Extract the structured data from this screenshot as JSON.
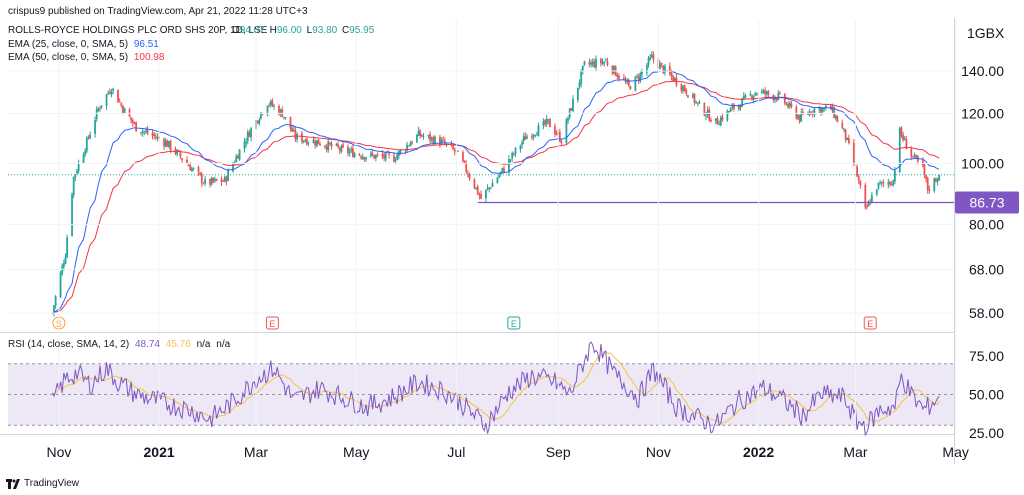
{
  "publisher_line": "crispus9 published on TradingView.com, Apr 21, 2022 11:28 UTC+3",
  "footer_text": "TradingView",
  "colors": {
    "up": "#26a69a",
    "down": "#ef5350",
    "ema25": "#2962ff",
    "ema50": "#f23645",
    "rsi": "#7e57c2",
    "rsi_ma": "#f5c542",
    "support": "#7e57c2",
    "rsi_band": "#ede7f6"
  },
  "chart_data": [
    {
      "type": "candlestick",
      "title": "ROLLS-ROYCE HOLDINGS PLC ORD SHS 20P, 1D, LSE",
      "ohlc_readout": {
        "o_label": "O",
        "o": "94.07",
        "h_label": "H",
        "h": "96.00",
        "l_label": "L",
        "l": "93.80",
        "c_label": "C",
        "c": "95.95"
      },
      "currency_label": "GBX",
      "y_ticks": [
        "140.00",
        "120.00",
        "100.00",
        "80.00",
        "68.00",
        "58.00"
      ],
      "y_scale": "log",
      "x_ticks": [
        {
          "label": "Nov",
          "bold": false
        },
        {
          "label": "2021",
          "bold": true
        },
        {
          "label": "Mar",
          "bold": false
        },
        {
          "label": "May",
          "bold": false
        },
        {
          "label": "Jul",
          "bold": false
        },
        {
          "label": "Sep",
          "bold": false
        },
        {
          "label": "Nov",
          "bold": false
        },
        {
          "label": "2022",
          "bold": true
        },
        {
          "label": "Mar",
          "bold": false
        },
        {
          "label": "May",
          "bold": false
        }
      ],
      "indicators": [
        {
          "label": "EMA (25, close, 0, SMA, 5)",
          "value": "96.51",
          "color": "#2962ff"
        },
        {
          "label": "EMA (50, close, 0, SMA, 5)",
          "value": "100.98",
          "color": "#f23645"
        }
      ],
      "horizontal_line": {
        "value": 86.73,
        "label": "86.73"
      },
      "events": [
        {
          "letter": "S",
          "kind": "split"
        },
        {
          "letter": "E",
          "kind": "earnings"
        },
        {
          "letter": "E",
          "kind": "earnings"
        },
        {
          "letter": "E",
          "kind": "earnings"
        }
      ],
      "price_path": [
        [
          "2020-10-28",
          58
        ],
        [
          "2020-11-05",
          72
        ],
        [
          "2020-11-10",
          95
        ],
        [
          "2020-11-18",
          108
        ],
        [
          "2020-11-25",
          122
        ],
        [
          "2020-12-03",
          132
        ],
        [
          "2020-12-10",
          122
        ],
        [
          "2020-12-18",
          114
        ],
        [
          "2021-01-05",
          108
        ],
        [
          "2021-01-18",
          100
        ],
        [
          "2021-01-29",
          93
        ],
        [
          "2021-02-10",
          94
        ],
        [
          "2021-02-25",
          112
        ],
        [
          "2021-03-08",
          125
        ],
        [
          "2021-03-17",
          120
        ],
        [
          "2021-03-25",
          110
        ],
        [
          "2021-04-08",
          108
        ],
        [
          "2021-04-22",
          105
        ],
        [
          "2021-05-06",
          103
        ],
        [
          "2021-05-24",
          102
        ],
        [
          "2021-06-08",
          111
        ],
        [
          "2021-06-22",
          108
        ],
        [
          "2021-07-01",
          104
        ],
        [
          "2021-07-16",
          88
        ],
        [
          "2021-07-30",
          98
        ],
        [
          "2021-08-12",
          110
        ],
        [
          "2021-08-26",
          116
        ],
        [
          "2021-09-03",
          109
        ],
        [
          "2021-09-10",
          125
        ],
        [
          "2021-09-17",
          143
        ],
        [
          "2021-09-30",
          145
        ],
        [
          "2021-10-14",
          132
        ],
        [
          "2021-10-21",
          138
        ],
        [
          "2021-10-28",
          147
        ],
        [
          "2021-11-05",
          140
        ],
        [
          "2021-11-16",
          132
        ],
        [
          "2021-11-26",
          123
        ],
        [
          "2021-12-06",
          116
        ],
        [
          "2021-12-16",
          122
        ],
        [
          "2021-12-31",
          130
        ],
        [
          "2022-01-14",
          127
        ],
        [
          "2022-01-26",
          118
        ],
        [
          "2022-02-04",
          122
        ],
        [
          "2022-02-14",
          122
        ],
        [
          "2022-02-22",
          112
        ],
        [
          "2022-03-01",
          98
        ],
        [
          "2022-03-07",
          84
        ],
        [
          "2022-03-14",
          92
        ],
        [
          "2022-03-24",
          94
        ],
        [
          "2022-03-28",
          112
        ],
        [
          "2022-04-04",
          103
        ],
        [
          "2022-04-11",
          98
        ],
        [
          "2022-04-14",
          91
        ],
        [
          "2022-04-21",
          96
        ]
      ],
      "ema25_end": 96.51,
      "ema50_end": 100.98
    },
    {
      "type": "line",
      "title": "RSI (14, close, SMA, 14, 2)",
      "values_readout": [
        "48.74",
        "45.76",
        "n/a",
        "n/a"
      ],
      "series": [
        {
          "name": "RSI",
          "color": "#7e57c2"
        },
        {
          "name": "RSI-based MA",
          "color": "#f5c542"
        }
      ],
      "y_ticks": [
        "75.00",
        "50.00",
        "25.00"
      ],
      "ylim": [
        20,
        85
      ],
      "band": [
        30,
        70
      ],
      "rsi_path": [
        [
          "2020-10-28",
          45
        ],
        [
          "2020-11-05",
          60
        ],
        [
          "2020-11-12",
          64
        ],
        [
          "2020-11-20",
          56
        ],
        [
          "2020-11-30",
          67
        ],
        [
          "2020-12-07",
          58
        ],
        [
          "2020-12-18",
          50
        ],
        [
          "2021-01-06",
          44
        ],
        [
          "2021-01-20",
          40
        ],
        [
          "2021-02-01",
          34
        ],
        [
          "2021-02-15",
          45
        ],
        [
          "2021-03-01",
          60
        ],
        [
          "2021-03-12",
          67
        ],
        [
          "2021-03-24",
          46
        ],
        [
          "2021-04-09",
          54
        ],
        [
          "2021-04-23",
          48
        ],
        [
          "2021-05-07",
          42
        ],
        [
          "2021-05-21",
          47
        ],
        [
          "2021-06-08",
          58
        ],
        [
          "2021-06-24",
          52
        ],
        [
          "2021-07-02",
          46
        ],
        [
          "2021-07-19",
          30
        ],
        [
          "2021-08-02",
          52
        ],
        [
          "2021-08-16",
          62
        ],
        [
          "2021-08-30",
          58
        ],
        [
          "2021-09-08",
          50
        ],
        [
          "2021-09-15",
          68
        ],
        [
          "2021-09-22",
          84
        ],
        [
          "2021-10-06",
          62
        ],
        [
          "2021-10-20",
          48
        ],
        [
          "2021-10-29",
          66
        ],
        [
          "2021-11-12",
          42
        ],
        [
          "2021-11-24",
          35
        ],
        [
          "2021-12-06",
          30
        ],
        [
          "2021-12-20",
          46
        ],
        [
          "2022-01-04",
          54
        ],
        [
          "2022-01-14",
          48
        ],
        [
          "2022-01-28",
          36
        ],
        [
          "2022-02-08",
          50
        ],
        [
          "2022-02-22",
          48
        ],
        [
          "2022-03-02",
          32
        ],
        [
          "2022-03-08",
          30
        ],
        [
          "2022-03-16",
          40
        ],
        [
          "2022-03-25",
          42
        ],
        [
          "2022-03-29",
          62
        ],
        [
          "2022-04-05",
          48
        ],
        [
          "2022-04-12",
          40
        ],
        [
          "2022-04-21",
          48.74
        ]
      ],
      "ma_end": 45.76
    }
  ]
}
